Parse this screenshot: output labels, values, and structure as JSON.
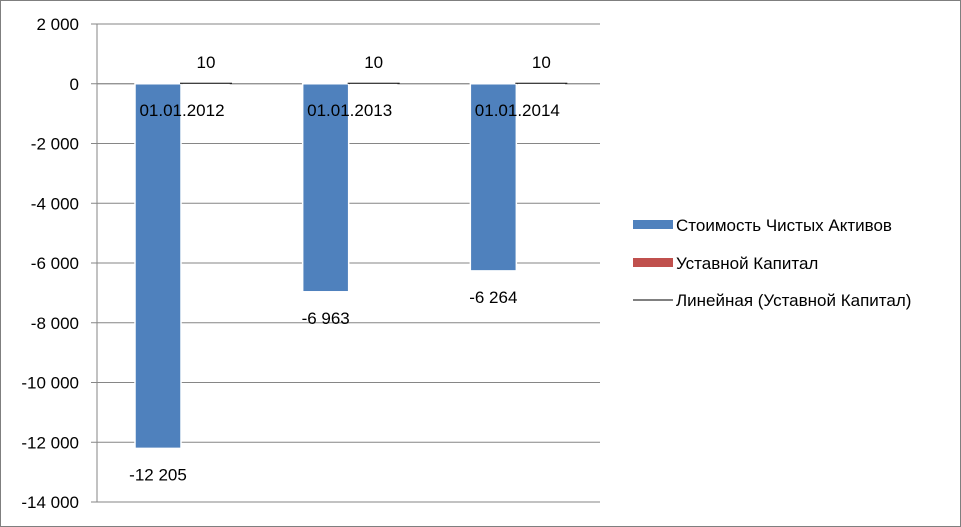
{
  "chart_data": {
    "type": "bar",
    "categories": [
      "01.01.2012",
      "01.01.2013",
      "01.01.2014"
    ],
    "series": [
      {
        "name": "Стоимость Чистых Активов",
        "values": [
          -12205,
          -6963,
          -6264
        ],
        "labels": [
          "-12 205",
          "-6 963",
          "-6 264"
        ],
        "color": "#4f81bd"
      },
      {
        "name": "Уставной Капитал",
        "values": [
          10,
          10,
          10
        ],
        "labels": [
          "10",
          "10",
          "10"
        ],
        "color": "#c0504d"
      }
    ],
    "trendline": {
      "name": "Линейная (Уставной Капитал)",
      "series": "Уставной Капитал",
      "color": "#000000"
    },
    "y_ticks": [
      "2 000",
      "0",
      "-2 000",
      "-4 000",
      "-6 000",
      "-8 000",
      "-10 000",
      "-12 000",
      "-14 000"
    ],
    "ylim": [
      -14000,
      2000
    ],
    "ystep": 2000,
    "grid": true,
    "legend": "right"
  }
}
